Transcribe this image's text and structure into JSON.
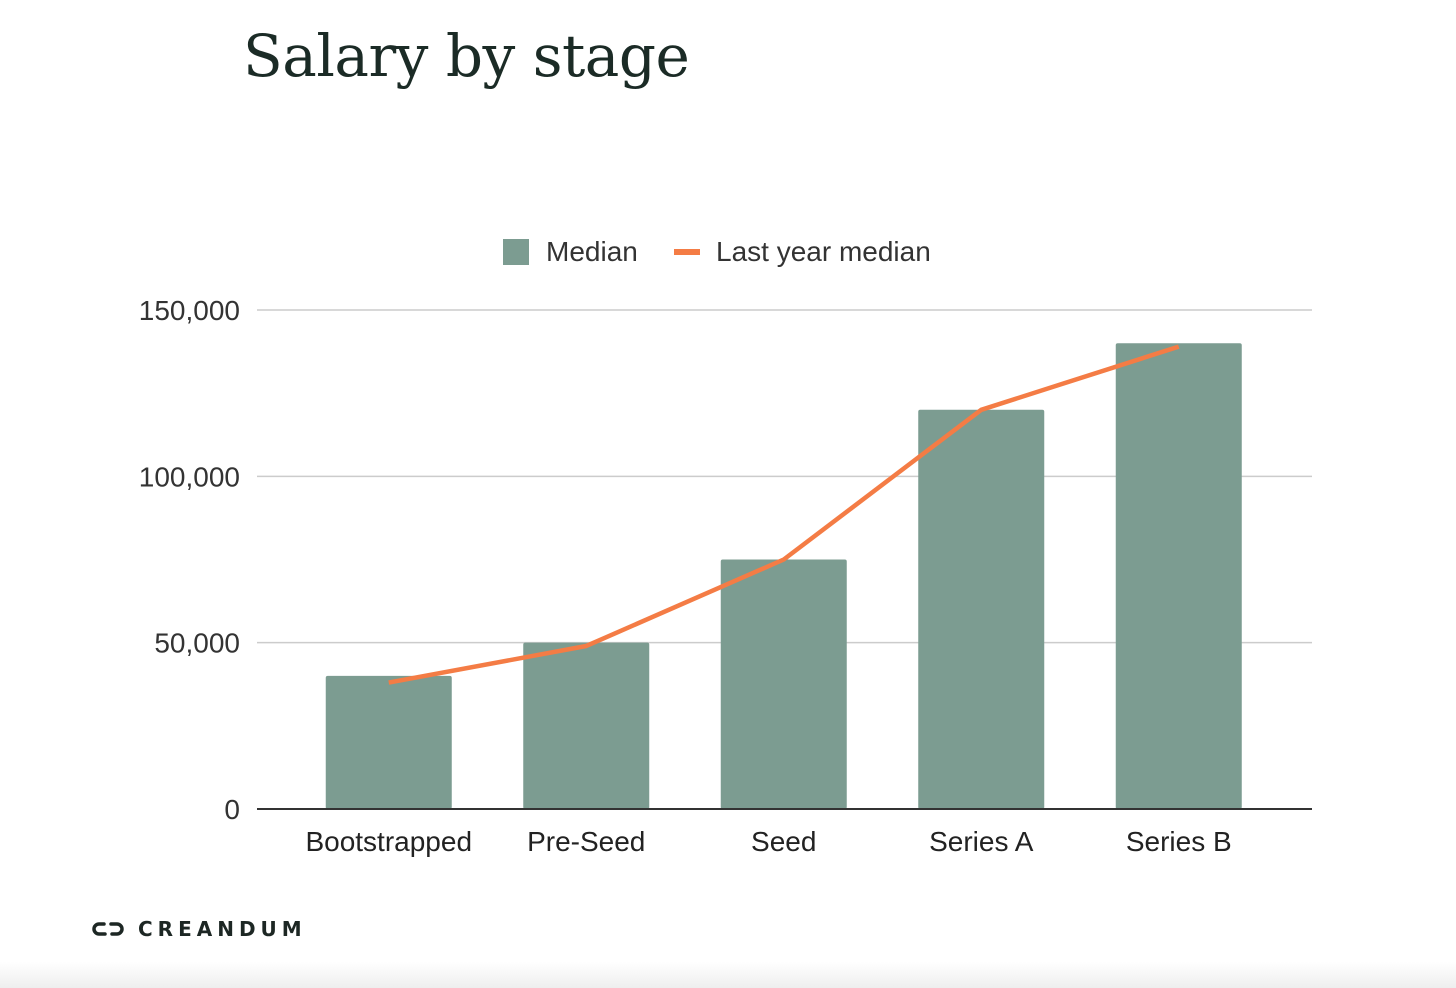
{
  "page": {
    "title": "Salary by stage",
    "brand": "CREANDUM",
    "brand_logo_icon": "chain-link-icon"
  },
  "colors": {
    "bar": "#7c9c91",
    "line": "#f47c45",
    "grid": "#cccccc",
    "axis": "#333333",
    "title": "#1b2b26"
  },
  "chart_data": {
    "type": "bar",
    "title": "Salary by stage",
    "xlabel": "",
    "ylabel": "",
    "categories": [
      "Bootstrapped",
      "Pre-Seed",
      "Seed",
      "Series A",
      "Series B"
    ],
    "series": [
      {
        "name": "Median",
        "type": "bar",
        "color": "#7c9c91",
        "values": [
          40000,
          50000,
          75000,
          120000,
          140000
        ]
      },
      {
        "name": "Last year median",
        "type": "line",
        "color": "#f47c45",
        "values": [
          38000,
          49000,
          75000,
          120000,
          139000
        ]
      }
    ],
    "ylim": [
      0,
      150000
    ],
    "y_ticks": [
      0,
      50000,
      100000,
      150000
    ],
    "y_tick_labels": [
      "0",
      "50,000",
      "100,000",
      "150,000"
    ],
    "grid": true,
    "legend_position": "top-center"
  }
}
